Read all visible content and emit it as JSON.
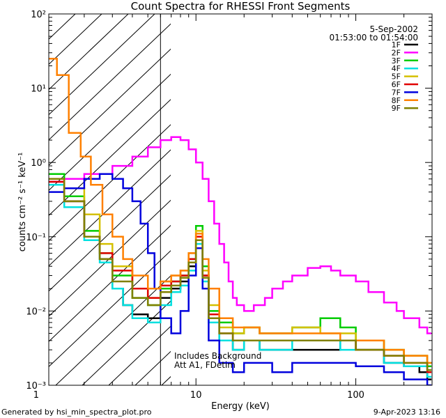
{
  "chart_data": {
    "type": "line",
    "title": "Count Spectra for RHESSI Front Segments",
    "xlabel": "Energy (keV)",
    "ylabel": "counts cm⁻² s⁻¹ keV⁻¹",
    "xscale": "log",
    "yscale": "log",
    "xlim": [
      1.2,
      300
    ],
    "ylim": [
      0.001,
      100
    ],
    "x_tick_labels": [
      {
        "value": 1,
        "label": "1"
      },
      {
        "value": 10,
        "label": "10"
      },
      {
        "value": 100,
        "label": "100"
      }
    ],
    "y_tick_labels": [
      {
        "value": 100,
        "label": "10²"
      },
      {
        "value": 10,
        "label": "10¹"
      },
      {
        "value": 1,
        "label": "10⁰"
      },
      {
        "value": 0.1,
        "label": "10⁻¹"
      },
      {
        "value": 0.01,
        "label": "10⁻²"
      },
      {
        "value": 0.001,
        "label": "10⁻³"
      }
    ],
    "date_text": "5-Sep-2002",
    "time_range_text": "01:53:00 to 01:54:00",
    "annotation_lines": [
      "Includes Background",
      "Att A1, FDetim"
    ],
    "attenuator_cutoff_keV": 6,
    "legend_position": "top-right",
    "series": [
      {
        "name": "1F",
        "color": "#000000",
        "points": [
          [
            1.2,
            0.55
          ],
          [
            1.5,
            0.3
          ],
          [
            2,
            0.1
          ],
          [
            2.5,
            0.05
          ],
          [
            3,
            0.02
          ],
          [
            3.5,
            0.012
          ],
          [
            4,
            0.009
          ],
          [
            5,
            0.008
          ],
          [
            6,
            0.015
          ],
          [
            7,
            0.02
          ],
          [
            8,
            0.025
          ],
          [
            9,
            0.04
          ],
          [
            10,
            0.09
          ],
          [
            11,
            0.03
          ],
          [
            12,
            0.008
          ],
          [
            14,
            0.004
          ],
          [
            17,
            0.003
          ],
          [
            20,
            0.004
          ],
          [
            25,
            0.003
          ],
          [
            30,
            0.003
          ],
          [
            40,
            0.003
          ],
          [
            60,
            0.003
          ],
          [
            80,
            0.004
          ],
          [
            100,
            0.003
          ],
          [
            150,
            0.002
          ],
          [
            200,
            0.0018
          ],
          [
            250,
            0.0015
          ],
          [
            280,
            0.0012
          ]
        ]
      },
      {
        "name": "2F",
        "color": "#ff00ff",
        "points": [
          [
            1.2,
            0.55
          ],
          [
            1.5,
            0.6
          ],
          [
            2,
            0.7
          ],
          [
            3,
            0.9
          ],
          [
            4,
            1.2
          ],
          [
            5,
            1.6
          ],
          [
            6,
            2
          ],
          [
            7,
            2.2
          ],
          [
            8,
            2
          ],
          [
            9,
            1.5
          ],
          [
            10,
            1
          ],
          [
            11,
            0.6
          ],
          [
            12,
            0.3
          ],
          [
            13,
            0.15
          ],
          [
            14,
            0.08
          ],
          [
            15,
            0.045
          ],
          [
            16,
            0.025
          ],
          [
            17,
            0.015
          ],
          [
            18,
            0.012
          ],
          [
            20,
            0.01
          ],
          [
            23,
            0.012
          ],
          [
            27,
            0.015
          ],
          [
            30,
            0.02
          ],
          [
            35,
            0.025
          ],
          [
            40,
            0.03
          ],
          [
            50,
            0.038
          ],
          [
            60,
            0.04
          ],
          [
            70,
            0.035
          ],
          [
            80,
            0.03
          ],
          [
            100,
            0.025
          ],
          [
            120,
            0.018
          ],
          [
            150,
            0.013
          ],
          [
            180,
            0.01
          ],
          [
            200,
            0.008
          ],
          [
            250,
            0.006
          ],
          [
            280,
            0.005
          ]
        ]
      },
      {
        "name": "3F",
        "color": "#00cc00",
        "points": [
          [
            1.2,
            0.7
          ],
          [
            1.5,
            0.35
          ],
          [
            2,
            0.12
          ],
          [
            2.5,
            0.06
          ],
          [
            3,
            0.03
          ],
          [
            4,
            0.015
          ],
          [
            5,
            0.012
          ],
          [
            6,
            0.02
          ],
          [
            7,
            0.025
          ],
          [
            8,
            0.03
          ],
          [
            9,
            0.05
          ],
          [
            10,
            0.14
          ],
          [
            11,
            0.04
          ],
          [
            12,
            0.01
          ],
          [
            14,
            0.007
          ],
          [
            17,
            0.005
          ],
          [
            20,
            0.006
          ],
          [
            25,
            0.005
          ],
          [
            30,
            0.005
          ],
          [
            40,
            0.006
          ],
          [
            60,
            0.008
          ],
          [
            80,
            0.006
          ],
          [
            100,
            0.004
          ],
          [
            150,
            0.003
          ],
          [
            200,
            0.0025
          ],
          [
            280,
            0.0018
          ]
        ]
      },
      {
        "name": "4F",
        "color": "#00e0e0",
        "points": [
          [
            1.2,
            0.5
          ],
          [
            1.5,
            0.25
          ],
          [
            2,
            0.09
          ],
          [
            2.5,
            0.045
          ],
          [
            3,
            0.02
          ],
          [
            3.5,
            0.012
          ],
          [
            4,
            0.008
          ],
          [
            5,
            0.007
          ],
          [
            6,
            0.012
          ],
          [
            7,
            0.018
          ],
          [
            8,
            0.022
          ],
          [
            9,
            0.035
          ],
          [
            10,
            0.08
          ],
          [
            11,
            0.025
          ],
          [
            12,
            0.007
          ],
          [
            14,
            0.004
          ],
          [
            17,
            0.003
          ],
          [
            20,
            0.004
          ],
          [
            25,
            0.003
          ],
          [
            30,
            0.003
          ],
          [
            40,
            0.004
          ],
          [
            60,
            0.004
          ],
          [
            80,
            0.003
          ],
          [
            100,
            0.003
          ],
          [
            150,
            0.002
          ],
          [
            200,
            0.0018
          ],
          [
            280,
            0.0013
          ]
        ]
      },
      {
        "name": "5F",
        "color": "#d4c000",
        "points": [
          [
            1.2,
            0.6
          ],
          [
            1.5,
            0.45
          ],
          [
            2,
            0.2
          ],
          [
            2.5,
            0.08
          ],
          [
            3,
            0.04
          ],
          [
            4,
            0.02
          ],
          [
            5,
            0.015
          ],
          [
            6,
            0.025
          ],
          [
            7,
            0.03
          ],
          [
            8,
            0.035
          ],
          [
            9,
            0.06
          ],
          [
            10,
            0.12
          ],
          [
            11,
            0.035
          ],
          [
            12,
            0.012
          ],
          [
            14,
            0.006
          ],
          [
            17,
            0.005
          ],
          [
            20,
            0.006
          ],
          [
            25,
            0.005
          ],
          [
            30,
            0.005
          ],
          [
            40,
            0.006
          ],
          [
            60,
            0.005
          ],
          [
            80,
            0.005
          ],
          [
            100,
            0.004
          ],
          [
            150,
            0.003
          ],
          [
            200,
            0.0025
          ],
          [
            280,
            0.002
          ]
        ]
      },
      {
        "name": "6F",
        "color": "#e00000",
        "points": [
          [
            1.2,
            0.55
          ],
          [
            1.5,
            0.3
          ],
          [
            2,
            0.1
          ],
          [
            2.5,
            0.06
          ],
          [
            3,
            0.035
          ],
          [
            4,
            0.02
          ],
          [
            5,
            0.015
          ],
          [
            6,
            0.022
          ],
          [
            7,
            0.025
          ],
          [
            8,
            0.03
          ],
          [
            9,
            0.05
          ],
          [
            10,
            0.1
          ],
          [
            11,
            0.03
          ],
          [
            12,
            0.009
          ],
          [
            14,
            0.005
          ],
          [
            17,
            0.004
          ],
          [
            20,
            0.004
          ],
          [
            25,
            0.004
          ],
          [
            30,
            0.004
          ],
          [
            40,
            0.004
          ],
          [
            60,
            0.004
          ],
          [
            80,
            0.004
          ],
          [
            100,
            0.003
          ],
          [
            150,
            0.0025
          ],
          [
            200,
            0.002
          ],
          [
            280,
            0.0015
          ]
        ]
      },
      {
        "name": "7F",
        "color": "#0000dd",
        "points": [
          [
            1.2,
            0.4
          ],
          [
            1.5,
            0.45
          ],
          [
            2,
            0.6
          ],
          [
            2.5,
            0.7
          ],
          [
            3,
            0.6
          ],
          [
            3.5,
            0.45
          ],
          [
            4,
            0.3
          ],
          [
            4.5,
            0.15
          ],
          [
            5,
            0.06
          ],
          [
            5.5,
            0.02
          ],
          [
            6,
            0.008
          ],
          [
            7,
            0.005
          ],
          [
            8,
            0.01
          ],
          [
            9,
            0.03
          ],
          [
            10,
            0.07
          ],
          [
            11,
            0.02
          ],
          [
            12,
            0.004
          ],
          [
            14,
            0.002
          ],
          [
            17,
            0.0015
          ],
          [
            20,
            0.002
          ],
          [
            25,
            0.002
          ],
          [
            30,
            0.0015
          ],
          [
            40,
            0.002
          ],
          [
            60,
            0.002
          ],
          [
            80,
            0.002
          ],
          [
            100,
            0.0018
          ],
          [
            150,
            0.0015
          ],
          [
            200,
            0.0012
          ],
          [
            280,
            0.001
          ]
        ]
      },
      {
        "name": "8F",
        "color": "#ff8000",
        "points": [
          [
            1.2,
            25
          ],
          [
            1.35,
            15
          ],
          [
            1.6,
            2.5
          ],
          [
            1.9,
            1.2
          ],
          [
            2.2,
            0.5
          ],
          [
            2.6,
            0.2
          ],
          [
            3,
            0.1
          ],
          [
            3.5,
            0.05
          ],
          [
            4,
            0.03
          ],
          [
            5,
            0.02
          ],
          [
            6,
            0.025
          ],
          [
            7,
            0.03
          ],
          [
            8,
            0.035
          ],
          [
            9,
            0.06
          ],
          [
            10,
            0.11
          ],
          [
            11,
            0.05
          ],
          [
            12,
            0.02
          ],
          [
            14,
            0.008
          ],
          [
            17,
            0.006
          ],
          [
            20,
            0.006
          ],
          [
            25,
            0.005
          ],
          [
            30,
            0.005
          ],
          [
            40,
            0.005
          ],
          [
            60,
            0.005
          ],
          [
            80,
            0.004
          ],
          [
            100,
            0.004
          ],
          [
            150,
            0.003
          ],
          [
            200,
            0.0025
          ],
          [
            280,
            0.002
          ]
        ]
      },
      {
        "name": "9F",
        "color": "#808000",
        "points": [
          [
            1.2,
            0.6
          ],
          [
            1.5,
            0.3
          ],
          [
            2,
            0.1
          ],
          [
            2.5,
            0.05
          ],
          [
            3,
            0.025
          ],
          [
            4,
            0.015
          ],
          [
            5,
            0.012
          ],
          [
            6,
            0.018
          ],
          [
            7,
            0.022
          ],
          [
            8,
            0.028
          ],
          [
            9,
            0.045
          ],
          [
            10,
            0.09
          ],
          [
            11,
            0.028
          ],
          [
            12,
            0.008
          ],
          [
            14,
            0.005
          ],
          [
            17,
            0.004
          ],
          [
            20,
            0.004
          ],
          [
            25,
            0.004
          ],
          [
            30,
            0.004
          ],
          [
            40,
            0.004
          ],
          [
            60,
            0.004
          ],
          [
            80,
            0.004
          ],
          [
            100,
            0.003
          ],
          [
            150,
            0.0025
          ],
          [
            200,
            0.002
          ],
          [
            280,
            0.0016
          ]
        ]
      }
    ]
  },
  "footer": {
    "left_text": "Generated by hsi_min_spectra_plot.pro",
    "right_text": "9-Apr-2023 13:16"
  }
}
